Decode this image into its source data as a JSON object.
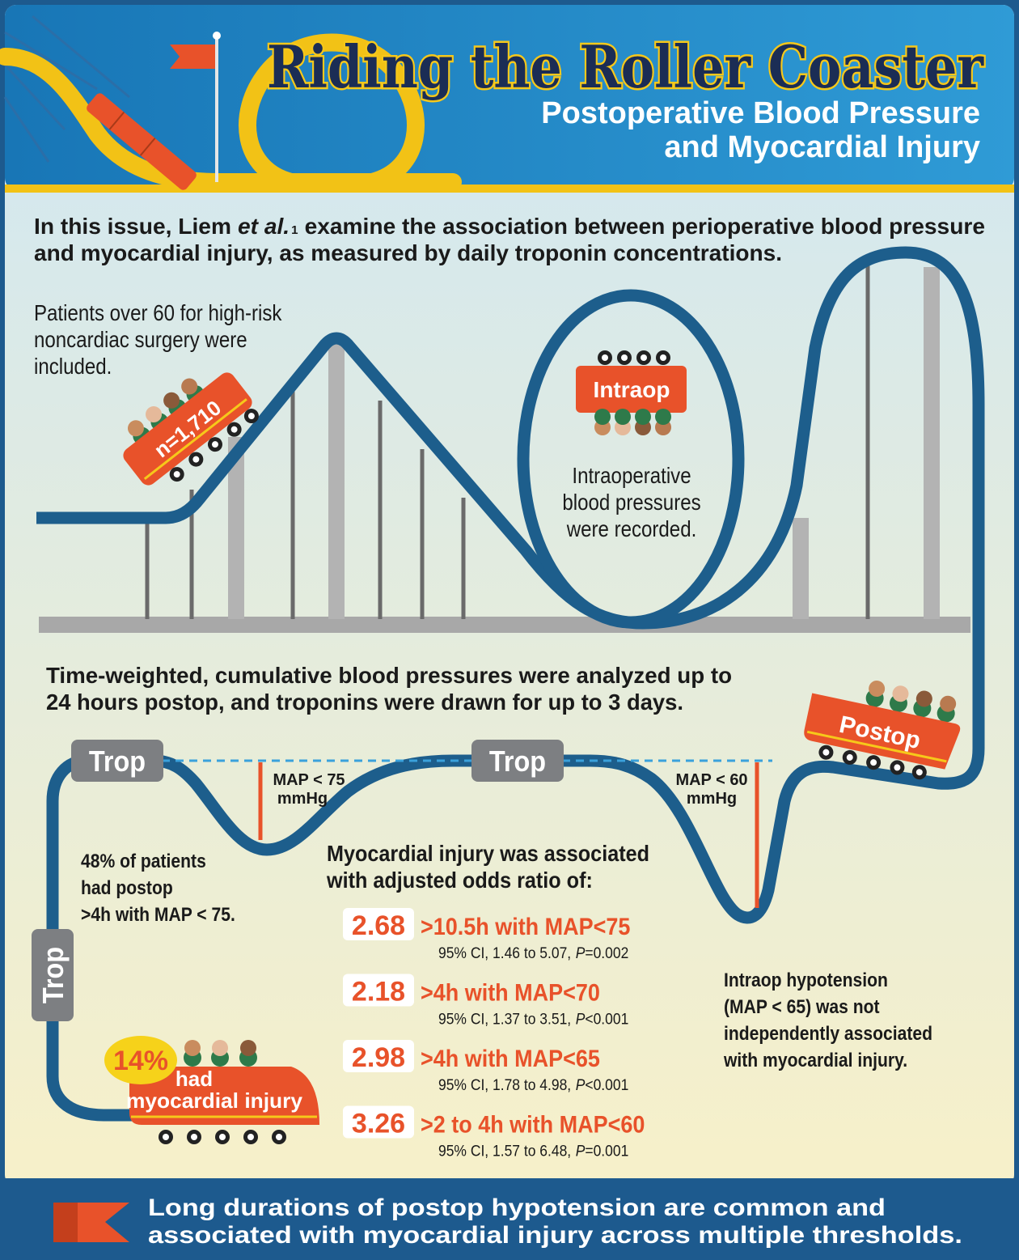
{
  "header": {
    "title": "Riding the Roller Coaster",
    "subtitle": [
      "Postoperative Blood Pressure",
      "and Myocardial Injury"
    ]
  },
  "intro": {
    "lead": "In this issue, Liem",
    "author_note": "et al.",
    "reference": "1",
    "rest": "examine the association between perioperative blood pressure",
    "line2": "and myocardial injury, as measured by daily troponin concentrations."
  },
  "coaster": {
    "sample_car": "n=1,710",
    "intraop_car": "Intraop",
    "postop_car": "Postop",
    "trop_markers": [
      "Trop",
      "Trop",
      "Trop"
    ],
    "thresholds": [
      {
        "label": "MAP < 75",
        "unit": "mmHg"
      },
      {
        "label": "MAP < 60",
        "unit": "mmHg"
      }
    ],
    "injury_car": {
      "percent": "14%",
      "lines": [
        "had",
        "myocardial injury"
      ]
    }
  },
  "notes": {
    "patients": [
      "Patients over 60 for high-risk",
      "noncardiac surgery were",
      "included."
    ],
    "intraop": [
      "Intraoperative",
      "blood pressures",
      "were recorded."
    ],
    "analysis": [
      "Time-weighted, cumulative blood pressures were analyzed up to",
      "24 hours postop, and troponins were drawn for up to 3 days."
    ],
    "postop_hypotension": [
      "48% of patients",
      "had postop",
      ">4h with MAP < 75."
    ],
    "intraop_hypotension": [
      "Intraop hypotension",
      "(MAP < 65) was not",
      "independently associated",
      "with myocardial injury."
    ]
  },
  "results": {
    "heading": [
      "Myocardial injury was associated",
      "with adjusted odds ratio of:"
    ],
    "rows": [
      {
        "odds_ratio": "2.68",
        "exposure": ">10.5h with MAP<75",
        "ci": "95% CI, 1.46 to 5.07,",
        "p_label": "P",
        "p_value": "=0.002"
      },
      {
        "odds_ratio": "2.18",
        "exposure": ">4h with MAP<70",
        "ci": "95% CI, 1.37 to 3.51,",
        "p_label": "P",
        "p_value": "<0.001"
      },
      {
        "odds_ratio": "2.98",
        "exposure": ">4h with MAP<65",
        "ci": "95% CI, 1.78 to 4.98,",
        "p_label": "P",
        "p_value": "<0.001"
      },
      {
        "odds_ratio": "3.26",
        "exposure": ">2 to 4h with MAP<60",
        "ci": "95% CI, 1.57 to 6.48,",
        "p_label": "P",
        "p_value": "=0.001"
      }
    ]
  },
  "footer": {
    "lines": [
      "Long durations of postop hypotension are common and",
      "associated with myocardial injury across multiple thresholds."
    ]
  }
}
